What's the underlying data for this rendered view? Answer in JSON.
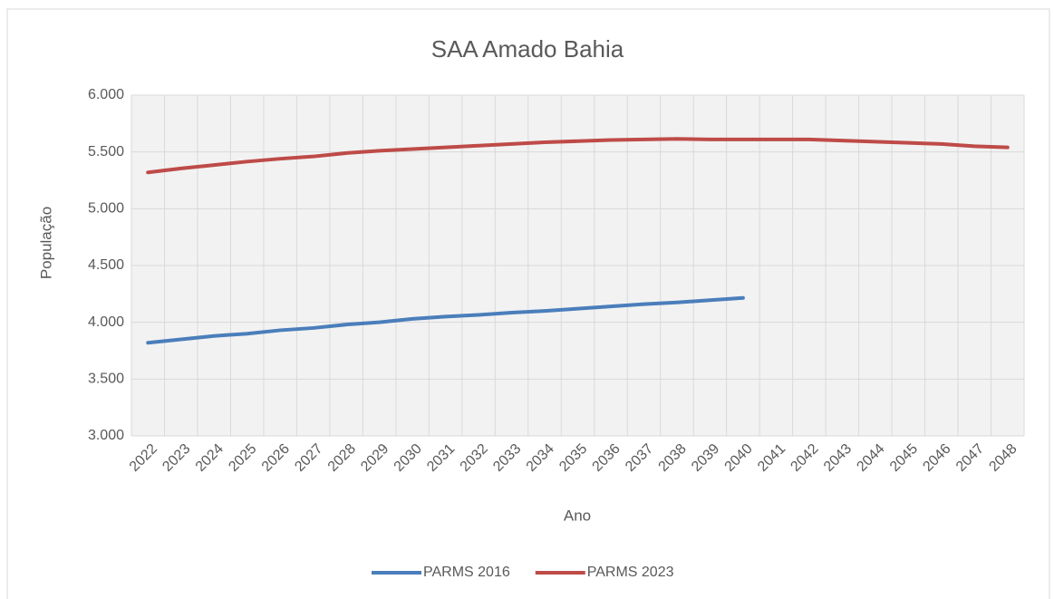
{
  "chart_data": {
    "type": "line",
    "title": "SAA Amado Bahia",
    "x_label": "Ano",
    "y_label": "População",
    "categories": [
      "2022",
      "2023",
      "2024",
      "2025",
      "2026",
      "2027",
      "2028",
      "2029",
      "2030",
      "2031",
      "2032",
      "2033",
      "2034",
      "2035",
      "2036",
      "2037",
      "2038",
      "2039",
      "2040",
      "2041",
      "2042",
      "2043",
      "2044",
      "2045",
      "2046",
      "2047",
      "2048"
    ],
    "series": [
      {
        "name": "PARMS 2016",
        "color": "#4a7ebb",
        "values": [
          3820,
          3850,
          3880,
          3900,
          3930,
          3950,
          3980,
          4000,
          4030,
          4050,
          4065,
          4085,
          4100,
          4120,
          4140,
          4160,
          4175,
          4195,
          4215,
          null,
          null,
          null,
          null,
          null,
          null,
          null,
          null
        ]
      },
      {
        "name": "PARMS 2023",
        "color": "#be4b48",
        "values": [
          5320,
          5355,
          5385,
          5415,
          5440,
          5460,
          5490,
          5510,
          5525,
          5540,
          5555,
          5570,
          5585,
          5595,
          5605,
          5610,
          5615,
          5610,
          5610,
          5610,
          5610,
          5600,
          5590,
          5580,
          5570,
          5550,
          5540
        ]
      }
    ],
    "ylim": [
      3000,
      6000
    ],
    "yticks": [
      {
        "value": 3000,
        "label": "3.000"
      },
      {
        "value": 3500,
        "label": "3.500"
      },
      {
        "value": 4000,
        "label": "4.000"
      },
      {
        "value": 4500,
        "label": "4.500"
      },
      {
        "value": 5000,
        "label": "5.000"
      },
      {
        "value": 5500,
        "label": "5.500"
      },
      {
        "value": 6000,
        "label": "6.000"
      }
    ],
    "grid": true,
    "legend": "bottom"
  }
}
